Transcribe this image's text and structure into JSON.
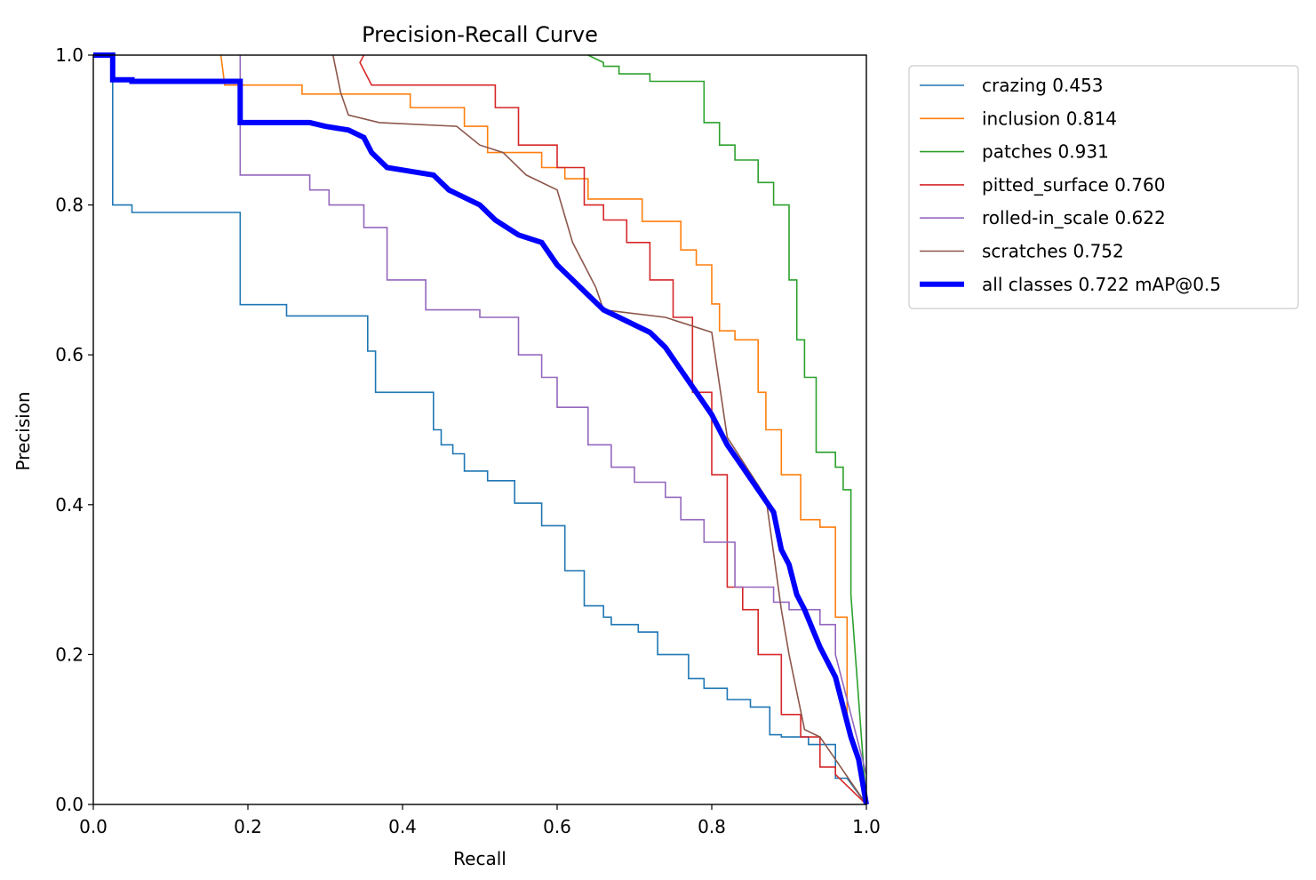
{
  "chart_data": {
    "type": "line",
    "title": "Precision-Recall Curve",
    "xlabel": "Recall",
    "ylabel": "Precision",
    "xlim": [
      0,
      1
    ],
    "ylim": [
      0,
      1
    ],
    "xticks": [
      "0.0",
      "0.2",
      "0.4",
      "0.6",
      "0.8",
      "1.0"
    ],
    "yticks": [
      "0.0",
      "0.2",
      "0.4",
      "0.6",
      "0.8",
      "1.0"
    ],
    "grid": false,
    "legend_position": "outside-top-right",
    "series": [
      {
        "name": "crazing 0.453",
        "color": "#1f77b4",
        "x": [
          0,
          0.025,
          0.025,
          0.05,
          0.05,
          0.19,
          0.19,
          0.25,
          0.25,
          0.355,
          0.355,
          0.365,
          0.365,
          0.44,
          0.44,
          0.45,
          0.45,
          0.465,
          0.465,
          0.48,
          0.48,
          0.51,
          0.51,
          0.545,
          0.545,
          0.58,
          0.58,
          0.61,
          0.61,
          0.635,
          0.635,
          0.66,
          0.66,
          0.67,
          0.67,
          0.705,
          0.705,
          0.73,
          0.73,
          0.77,
          0.77,
          0.79,
          0.79,
          0.82,
          0.82,
          0.85,
          0.85,
          0.875,
          0.875,
          0.89,
          0.89,
          0.925,
          0.925,
          0.96,
          0.96,
          0.975,
          1.0
        ],
        "y": [
          1.0,
          1.0,
          0.8,
          0.8,
          0.79,
          0.79,
          0.667,
          0.667,
          0.652,
          0.652,
          0.605,
          0.605,
          0.55,
          0.55,
          0.5,
          0.5,
          0.48,
          0.48,
          0.468,
          0.468,
          0.445,
          0.445,
          0.432,
          0.432,
          0.402,
          0.402,
          0.372,
          0.372,
          0.312,
          0.312,
          0.265,
          0.265,
          0.25,
          0.25,
          0.24,
          0.24,
          0.23,
          0.23,
          0.2,
          0.2,
          0.168,
          0.168,
          0.155,
          0.155,
          0.14,
          0.14,
          0.13,
          0.13,
          0.093,
          0.093,
          0.09,
          0.09,
          0.08,
          0.08,
          0.035,
          0.035,
          0.0
        ]
      },
      {
        "name": "inclusion 0.814",
        "color": "#ff7f0e",
        "x": [
          0.165,
          0.17,
          0.27,
          0.27,
          0.41,
          0.41,
          0.48,
          0.48,
          0.51,
          0.51,
          0.58,
          0.58,
          0.61,
          0.61,
          0.64,
          0.64,
          0.71,
          0.71,
          0.76,
          0.76,
          0.78,
          0.78,
          0.8,
          0.8,
          0.81,
          0.81,
          0.83,
          0.83,
          0.86,
          0.86,
          0.87,
          0.87,
          0.89,
          0.89,
          0.915,
          0.915,
          0.94,
          0.94,
          0.96,
          0.96,
          0.975,
          0.975,
          1.0
        ],
        "y": [
          1.0,
          0.96,
          0.96,
          0.948,
          0.948,
          0.93,
          0.93,
          0.905,
          0.905,
          0.87,
          0.87,
          0.85,
          0.85,
          0.835,
          0.835,
          0.808,
          0.808,
          0.778,
          0.778,
          0.74,
          0.74,
          0.72,
          0.72,
          0.668,
          0.668,
          0.632,
          0.632,
          0.62,
          0.62,
          0.55,
          0.55,
          0.5,
          0.5,
          0.44,
          0.44,
          0.38,
          0.38,
          0.37,
          0.37,
          0.25,
          0.25,
          0.1,
          0.02
        ]
      },
      {
        "name": "patches 0.931",
        "color": "#2ca02c",
        "x": [
          0.64,
          0.66,
          0.66,
          0.68,
          0.68,
          0.72,
          0.72,
          0.79,
          0.79,
          0.81,
          0.81,
          0.83,
          0.83,
          0.86,
          0.86,
          0.88,
          0.88,
          0.9,
          0.9,
          0.91,
          0.91,
          0.92,
          0.92,
          0.935,
          0.935,
          0.96,
          0.96,
          0.97,
          0.97,
          0.98,
          0.98,
          1.0
        ],
        "y": [
          1.0,
          0.99,
          0.985,
          0.985,
          0.975,
          0.975,
          0.965,
          0.965,
          0.91,
          0.91,
          0.88,
          0.88,
          0.86,
          0.86,
          0.83,
          0.83,
          0.8,
          0.8,
          0.7,
          0.7,
          0.62,
          0.62,
          0.57,
          0.57,
          0.47,
          0.47,
          0.45,
          0.45,
          0.42,
          0.42,
          0.28,
          0.0
        ]
      },
      {
        "name": "pitted_surface 0.760",
        "color": "#d62728",
        "x": [
          0.35,
          0.345,
          0.36,
          0.36,
          0.52,
          0.52,
          0.55,
          0.55,
          0.6,
          0.6,
          0.615,
          0.615,
          0.635,
          0.635,
          0.66,
          0.66,
          0.69,
          0.69,
          0.72,
          0.72,
          0.75,
          0.75,
          0.775,
          0.775,
          0.8,
          0.8,
          0.82,
          0.82,
          0.84,
          0.84,
          0.86,
          0.86,
          0.89,
          0.89,
          0.915,
          0.915,
          0.94,
          0.94,
          0.96,
          0.96,
          1.0
        ],
        "y": [
          1.0,
          0.99,
          0.96,
          0.96,
          0.96,
          0.93,
          0.93,
          0.88,
          0.88,
          0.85,
          0.85,
          0.85,
          0.85,
          0.8,
          0.8,
          0.78,
          0.78,
          0.75,
          0.75,
          0.7,
          0.7,
          0.65,
          0.65,
          0.55,
          0.55,
          0.44,
          0.44,
          0.29,
          0.29,
          0.26,
          0.26,
          0.2,
          0.2,
          0.12,
          0.12,
          0.09,
          0.09,
          0.05,
          0.05,
          0.04,
          0.0
        ]
      },
      {
        "name": "rolled-in_scale 0.622",
        "color": "#9467bd",
        "x": [
          0.19,
          0.19,
          0.19,
          0.28,
          0.28,
          0.305,
          0.305,
          0.35,
          0.35,
          0.38,
          0.38,
          0.43,
          0.43,
          0.5,
          0.5,
          0.55,
          0.55,
          0.58,
          0.58,
          0.6,
          0.6,
          0.64,
          0.64,
          0.67,
          0.67,
          0.7,
          0.7,
          0.74,
          0.74,
          0.76,
          0.76,
          0.79,
          0.79,
          0.83,
          0.83,
          0.85,
          0.85,
          0.88,
          0.88,
          0.9,
          0.9,
          0.94,
          0.94,
          0.96,
          0.96,
          1.0
        ],
        "y": [
          1.0,
          0.84,
          0.84,
          0.84,
          0.82,
          0.82,
          0.8,
          0.8,
          0.77,
          0.77,
          0.7,
          0.7,
          0.66,
          0.66,
          0.65,
          0.65,
          0.6,
          0.6,
          0.57,
          0.57,
          0.53,
          0.53,
          0.48,
          0.48,
          0.45,
          0.45,
          0.43,
          0.43,
          0.41,
          0.41,
          0.38,
          0.38,
          0.35,
          0.35,
          0.29,
          0.29,
          0.29,
          0.29,
          0.27,
          0.27,
          0.26,
          0.26,
          0.24,
          0.24,
          0.2,
          0.04
        ]
      },
      {
        "name": "scratches 0.752",
        "color": "#8c564b",
        "x": [
          0.31,
          0.32,
          0.32,
          0.33,
          0.33,
          0.37,
          0.37,
          0.47,
          0.47,
          0.5,
          0.5,
          0.53,
          0.53,
          0.56,
          0.56,
          0.6,
          0.6,
          0.62,
          0.62,
          0.65,
          0.65,
          0.66,
          0.66,
          0.74,
          0.74,
          0.8,
          0.8,
          0.82,
          0.82,
          0.87,
          0.87,
          0.89,
          0.89,
          0.9,
          0.9,
          0.92,
          0.92,
          0.94,
          0.94,
          0.96,
          0.96,
          1.0
        ],
        "y": [
          1.0,
          0.95,
          0.95,
          0.92,
          0.92,
          0.91,
          0.91,
          0.905,
          0.905,
          0.88,
          0.88,
          0.87,
          0.87,
          0.84,
          0.84,
          0.82,
          0.82,
          0.75,
          0.75,
          0.69,
          0.69,
          0.66,
          0.66,
          0.65,
          0.65,
          0.63,
          0.63,
          0.49,
          0.49,
          0.41,
          0.41,
          0.26,
          0.26,
          0.2,
          0.2,
          0.1,
          0.1,
          0.09,
          0.09,
          0.06,
          0.06,
          0.0
        ]
      },
      {
        "name": "all classes 0.722 mAP@0.5",
        "color": "#0000ff",
        "bold": true,
        "x": [
          0,
          0.025,
          0.025,
          0.05,
          0.05,
          0.19,
          0.19,
          0.28,
          0.3,
          0.33,
          0.35,
          0.36,
          0.38,
          0.41,
          0.44,
          0.46,
          0.5,
          0.52,
          0.55,
          0.58,
          0.6,
          0.62,
          0.64,
          0.66,
          0.68,
          0.7,
          0.72,
          0.74,
          0.76,
          0.78,
          0.8,
          0.82,
          0.84,
          0.86,
          0.88,
          0.89,
          0.9,
          0.91,
          0.92,
          0.94,
          0.96,
          0.97,
          0.98,
          0.99,
          1.0
        ],
        "y": [
          1.0,
          1.0,
          0.967,
          0.967,
          0.965,
          0.965,
          0.91,
          0.91,
          0.905,
          0.9,
          0.89,
          0.87,
          0.85,
          0.845,
          0.84,
          0.82,
          0.8,
          0.78,
          0.76,
          0.75,
          0.72,
          0.7,
          0.68,
          0.66,
          0.65,
          0.64,
          0.63,
          0.61,
          0.58,
          0.55,
          0.52,
          0.48,
          0.45,
          0.42,
          0.39,
          0.34,
          0.32,
          0.28,
          0.26,
          0.21,
          0.17,
          0.13,
          0.09,
          0.06,
          0.0
        ]
      }
    ]
  }
}
